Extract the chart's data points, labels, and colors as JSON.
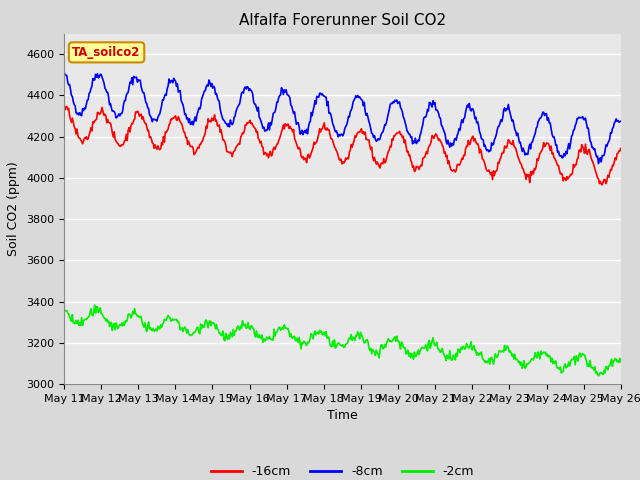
{
  "title": "Alfalfa Forerunner Soil CO2",
  "xlabel": "Time",
  "ylabel": "Soil CO2 (ppm)",
  "ylim": [
    3000,
    4700
  ],
  "yticks": [
    3000,
    3200,
    3400,
    3600,
    3800,
    4000,
    4200,
    4400,
    4600
  ],
  "xtick_labels": [
    "May 11",
    "May 12",
    "May 13",
    "May 14",
    "May 15",
    "May 16",
    "May 17",
    "May 18",
    "May 19",
    "May 20",
    "May 21",
    "May 22",
    "May 23",
    "May 24",
    "May 25",
    "May 26"
  ],
  "legend_labels": [
    "-16cm",
    "-8cm",
    "-2cm"
  ],
  "line_colors": [
    "#ff0000",
    "#0000ff",
    "#00ee00"
  ],
  "bg_color": "#d9d9d9",
  "plot_bg_color": "#e8e8e8",
  "annotation_text": "TA_soilco2",
  "annotation_bg": "#ffff99",
  "annotation_border": "#cc8800",
  "title_fontsize": 11,
  "axis_label_fontsize": 9,
  "tick_fontsize": 8
}
